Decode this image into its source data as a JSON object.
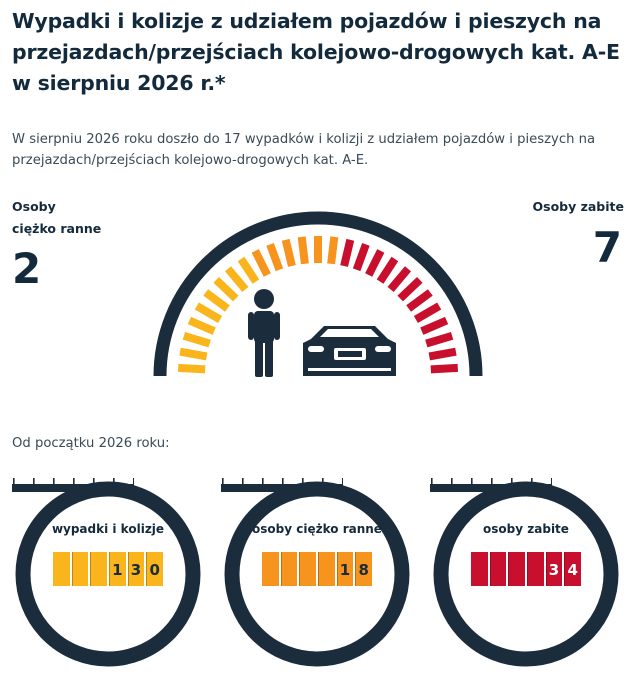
{
  "title": "Wypadki i kolizje z udziałem pojazdów i pieszych na przejazdach/przejściach kolejowo-drogowych kat. A-E w sierpniu 2026 r.*",
  "intro": "W sierpniu 2026 roku doszło do 17 wypadków i kolizji z udziałem pojazdów i pieszych na przejazdach/przejściach kolejowo-drogowych kat. A-E.",
  "month": {
    "injured": {
      "label_line1": "Osoby",
      "label_line2": "ciężko ranne",
      "value": "2"
    },
    "killed": {
      "label": "Osoby zabite",
      "value": "7"
    }
  },
  "gauge": {
    "icons": [
      "pedestrian-icon",
      "car-icon"
    ],
    "colors": {
      "yellow": "#f9b51b",
      "orange": "#f7941d",
      "red": "#c8102e",
      "frame": "#1b2d3c"
    }
  },
  "since_label": "Od początku 2026 roku:",
  "counters": [
    {
      "label": "wypadki i kolizje",
      "digits": [
        "",
        "",
        "",
        "1",
        "3",
        "0"
      ],
      "color": "#f9b51b",
      "style": "y"
    },
    {
      "label": "osoby ciężko ranne",
      "digits": [
        "",
        "",
        "",
        "",
        "1",
        "8"
      ],
      "color": "#f7941d",
      "style": "o"
    },
    {
      "label": "osoby zabite",
      "digits": [
        "",
        "",
        "",
        "",
        "3",
        "4"
      ],
      "color": "#c8102e",
      "style": "r"
    }
  ]
}
